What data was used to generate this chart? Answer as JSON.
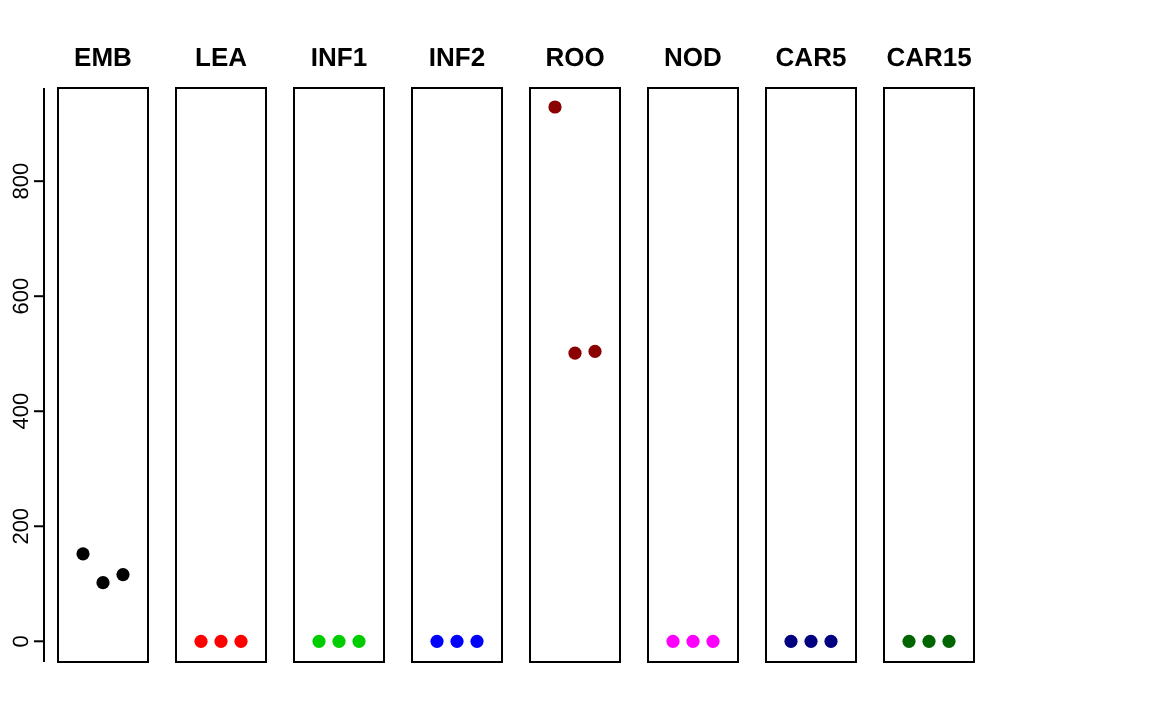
{
  "chart_data": {
    "type": "scatter",
    "categories": [
      "EMB",
      "LEA",
      "INF1",
      "INF2",
      "ROO",
      "NOD",
      "CAR5",
      "CAR15"
    ],
    "ylim": [
      -36,
      962
    ],
    "yticks": [
      0,
      200,
      400,
      600,
      800
    ],
    "marker": "circle",
    "series": [
      {
        "colors": [
          "#000000",
          "#ff0000",
          "#00cd00",
          "#0000ff",
          "#8b0000",
          "#ff00ff",
          "#000080",
          "#006400"
        ],
        "values": [
          152,
          0,
          0,
          0,
          929,
          0,
          0,
          0
        ]
      },
      {
        "colors": [
          "#000000",
          "#ff0000",
          "#00cd00",
          "#0000ff",
          "#8b0000",
          "#ff00ff",
          "#000080",
          "#006400"
        ],
        "values": [
          102,
          0,
          0,
          0,
          501,
          0,
          0,
          0
        ]
      },
      {
        "colors": [
          "#000000",
          "#ff0000",
          "#00cd00",
          "#0000ff",
          "#8b0000",
          "#ff00ff",
          "#000080",
          "#006400"
        ],
        "values": [
          116,
          0,
          0,
          0,
          504,
          0,
          0,
          0
        ]
      }
    ]
  }
}
